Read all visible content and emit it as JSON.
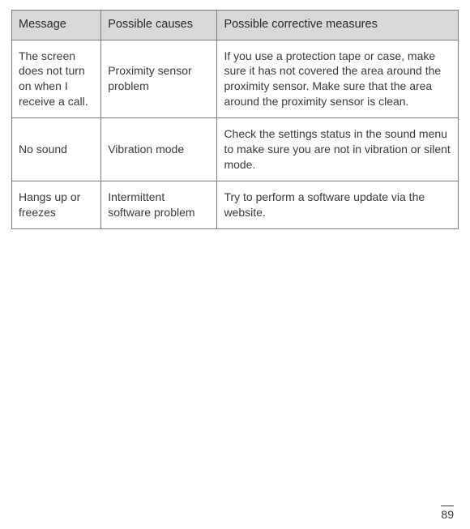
{
  "table": {
    "header_bg": "#d9d9d9",
    "border_color": "#7a7a7a",
    "text_color": "#3a3a3a",
    "font_size": 14,
    "columns": [
      {
        "label": "Message",
        "width_pct": 20
      },
      {
        "label": "Possible causes",
        "width_pct": 26
      },
      {
        "label": "Possible corrective measures",
        "width_pct": 54
      }
    ],
    "rows": [
      {
        "message": "The screen does not turn on when I receive a call.",
        "causes": "Proximity sensor problem",
        "corrective": "If you use a protection tape or case, make sure it has not covered the area around the proximity sensor. Make sure that the area around the proximity sensor is clean."
      },
      {
        "message": "No sound",
        "causes": "Vibration mode",
        "corrective": "Check the settings status in the sound menu to make sure you are not in vibration or silent mode."
      },
      {
        "message": "Hangs up or freezes",
        "causes": "Intermittent software problem",
        "corrective": "Try to perform a software update via the website."
      }
    ]
  },
  "page_number": "89"
}
